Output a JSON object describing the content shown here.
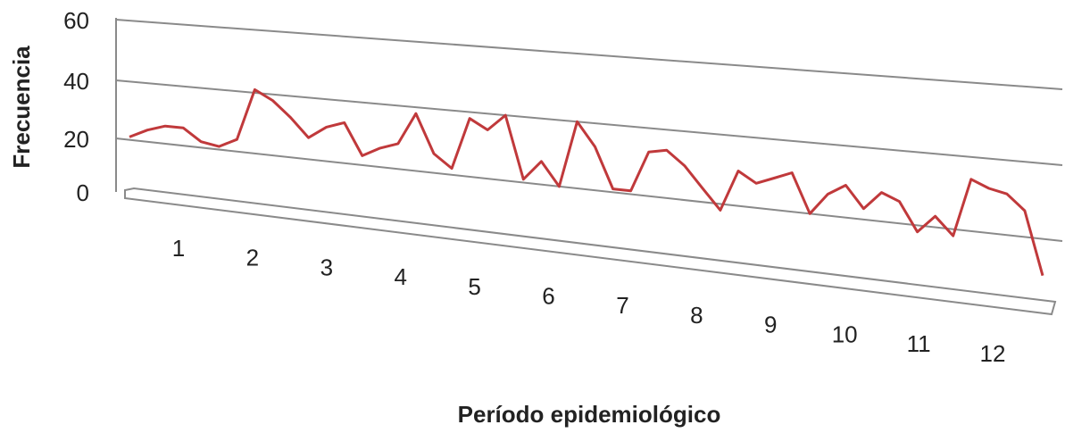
{
  "chart_data": {
    "type": "line",
    "x_axis_label": "Período epidemiológico",
    "y_axis_label": "Frecuencia",
    "xticks": [
      1,
      2,
      3,
      4,
      5,
      6,
      7,
      8,
      9,
      10,
      11,
      12
    ],
    "ylim": [
      0,
      60
    ],
    "yticks": [
      0,
      20,
      40,
      60
    ],
    "grid": true,
    "series": [
      {
        "name": "Frecuencia",
        "color": "#c0393b",
        "values": [
          21,
          24,
          26,
          26,
          22,
          21,
          24,
          41,
          38,
          33,
          27,
          31,
          33,
          23,
          26,
          28,
          38,
          26,
          22,
          38,
          35,
          40,
          21,
          27,
          20,
          40,
          33,
          21,
          21,
          33,
          34,
          30,
          24,
          18,
          30,
          27,
          29,
          31,
          20,
          26,
          29,
          23,
          28,
          26,
          18,
          23,
          18,
          34,
          32,
          31,
          27,
          9
        ]
      }
    ]
  }
}
